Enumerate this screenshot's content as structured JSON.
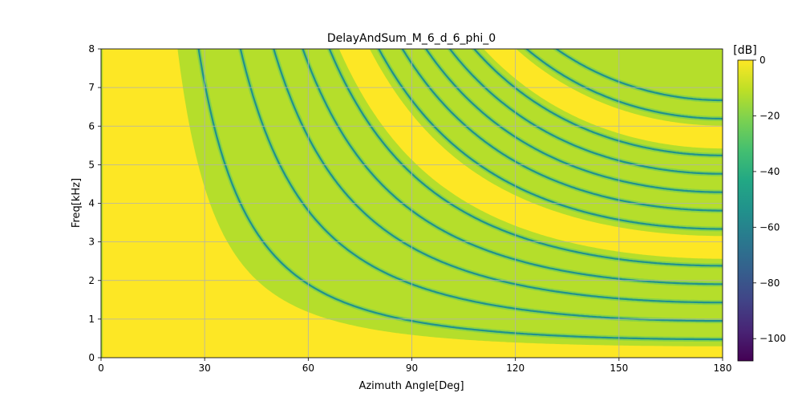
{
  "chart_data": {
    "type": "heatmap",
    "title": "DelayAndSum_M_6_d_6_phi_0",
    "xlabel": "Azimuth Angle[Deg]",
    "ylabel": "Freq[kHz]",
    "xlim": [
      0,
      180
    ],
    "ylim": [
      0,
      8
    ],
    "x_ticks": [
      0,
      30,
      60,
      90,
      120,
      150,
      180
    ],
    "y_ticks": [
      0,
      1,
      2,
      3,
      4,
      5,
      6,
      7,
      8
    ],
    "grid": true,
    "colormap": "viridis",
    "colorbar": {
      "label": "[dB]",
      "range": [
        -108,
        0
      ],
      "ticks": [
        0,
        -20,
        -40,
        -60,
        -80,
        -100
      ],
      "tick_labels": [
        "0",
        "−20",
        "−40",
        "−60",
        "−80",
        "−100"
      ]
    },
    "array": {
      "microphones": 6,
      "spacing_cm": 6,
      "steer_deg": 0
    },
    "null_curves_note": "Nulls at f = (k/6) * c / (d * (1 - cos(theta))), k = 1..14",
    "colors": {
      "high": "#fde725",
      "mid": "#b5de2b",
      "null": "#21918c",
      "deep": "#440154"
    }
  }
}
